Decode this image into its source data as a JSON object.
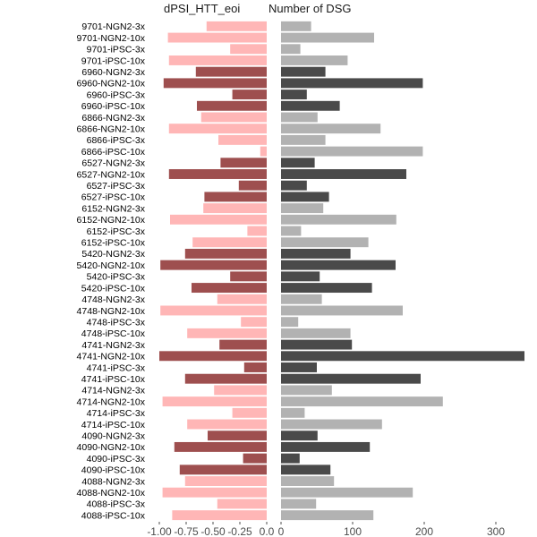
{
  "chart_data": [
    {
      "type": "bar",
      "orientation": "horizontal",
      "title": "dPSI_HTT_eoi",
      "xlim": [
        -1.0,
        0.0
      ],
      "xticks": [
        -1.0,
        -0.75,
        -0.5,
        -0.25,
        0.0
      ],
      "xtick_labels": [
        "-1.00",
        "-0.75",
        "-0.50",
        "-0.25",
        "0.0"
      ],
      "grid": false,
      "categories": [
        "9701-NGN2-3x",
        "9701-NGN2-10x",
        "9701-iPSC-3x",
        "9701-iPSC-10x",
        "6960-NGN2-3x",
        "6960-NGN2-10x",
        "6960-iPSC-3x",
        "6960-iPSC-10x",
        "6866-NGN2-3x",
        "6866-NGN2-10x",
        "6866-iPSC-3x",
        "6866-iPSC-10x",
        "6527-NGN2-3x",
        "6527-NGN2-10x",
        "6527-iPSC-3x",
        "6527-iPSC-10x",
        "6152-NGN2-3x",
        "6152-NGN2-10x",
        "6152-iPSC-3x",
        "6152-iPSC-10x",
        "5420-NGN2-3x",
        "5420-NGN2-10x",
        "5420-iPSC-3x",
        "5420-iPSC-10x",
        "4748-NGN2-3x",
        "4748-NGN2-10x",
        "4748-iPSC-3x",
        "4748-iPSC-10x",
        "4741-NGN2-3x",
        "4741-NGN2-10x",
        "4741-iPSC-3x",
        "4741-iPSC-10x",
        "4714-NGN2-3x",
        "4714-NGN2-10x",
        "4714-iPSC-3x",
        "4714-iPSC-10x",
        "4090-NGN2-3x",
        "4090-NGN2-10x",
        "4090-iPSC-3x",
        "4090-iPSC-10x",
        "4088-NGN2-3x",
        "4088-NGN2-10x",
        "4088-iPSC-3x",
        "4088-iPSC-10x"
      ],
      "values": [
        -0.56,
        -0.92,
        -0.34,
        -0.91,
        -0.66,
        -0.96,
        -0.32,
        -0.65,
        -0.61,
        -0.91,
        -0.45,
        -0.06,
        -0.43,
        -0.91,
        -0.26,
        -0.58,
        -0.59,
        -0.9,
        -0.18,
        -0.69,
        -0.76,
        -0.99,
        -0.34,
        -0.7,
        -0.46,
        -0.99,
        -0.24,
        -0.74,
        -0.44,
        -1.0,
        -0.21,
        -0.76,
        -0.49,
        -0.97,
        -0.32,
        -0.74,
        -0.55,
        -0.86,
        -0.22,
        -0.81,
        -0.76,
        -0.97,
        -0.46,
        -0.88
      ],
      "fill_by_sample_group": {
        "NGN2-3x": "#ffb6b6",
        "NGN2-10x": "#ffb6b6",
        "iPSC-3x": "#ffb6b6",
        "iPSC-10x": "#ffb6b6"
      },
      "alternating_fills": [
        "#ffb6b6",
        "#9e4f4f"
      ]
    },
    {
      "type": "bar",
      "orientation": "horizontal",
      "title": "Number of DSG",
      "xlim": [
        0,
        340
      ],
      "xticks": [
        0,
        100,
        200,
        300
      ],
      "xtick_labels": [
        "0",
        "100",
        "200",
        "300"
      ],
      "grid": false,
      "categories": [
        "9701-NGN2-3x",
        "9701-NGN2-10x",
        "9701-iPSC-3x",
        "9701-iPSC-10x",
        "6960-NGN2-3x",
        "6960-NGN2-10x",
        "6960-iPSC-3x",
        "6960-iPSC-10x",
        "6866-NGN2-3x",
        "6866-NGN2-10x",
        "6866-iPSC-3x",
        "6866-iPSC-10x",
        "6527-NGN2-3x",
        "6527-NGN2-10x",
        "6527-iPSC-3x",
        "6527-iPSC-10x",
        "6152-NGN2-3x",
        "6152-NGN2-10x",
        "6152-iPSC-3x",
        "6152-iPSC-10x",
        "5420-NGN2-3x",
        "5420-NGN2-10x",
        "5420-iPSC-3x",
        "5420-iPSC-10x",
        "4748-NGN2-3x",
        "4748-NGN2-10x",
        "4748-iPSC-3x",
        "4748-iPSC-10x",
        "4741-NGN2-3x",
        "4741-NGN2-10x",
        "4741-iPSC-3x",
        "4741-iPSC-10x",
        "4714-NGN2-3x",
        "4714-NGN2-10x",
        "4714-iPSC-3x",
        "4714-iPSC-10x",
        "4090-NGN2-3x",
        "4090-NGN2-10x",
        "4090-iPSC-3x",
        "4090-iPSC-10x",
        "4088-NGN2-3x",
        "4088-NGN2-10x",
        "4088-iPSC-3x",
        "4088-iPSC-10x"
      ],
      "values": [
        42,
        130,
        27,
        93,
        62,
        198,
        36,
        82,
        51,
        139,
        62,
        198,
        47,
        175,
        36,
        67,
        59,
        161,
        28,
        122,
        97,
        160,
        54,
        127,
        57,
        170,
        24,
        97,
        99,
        340,
        50,
        195,
        71,
        226,
        33,
        141,
        51,
        124,
        26,
        69,
        74,
        184,
        49,
        129
      ],
      "alternating_fills": [
        "#b2b2b2",
        "#4a4a4a"
      ]
    }
  ],
  "colors": {
    "left_light": "#ffb6b6",
    "left_dark": "#9e4f4f",
    "right_light": "#b2b2b2",
    "right_dark": "#4a4a4a",
    "tick_text": "#4d4d4d"
  }
}
